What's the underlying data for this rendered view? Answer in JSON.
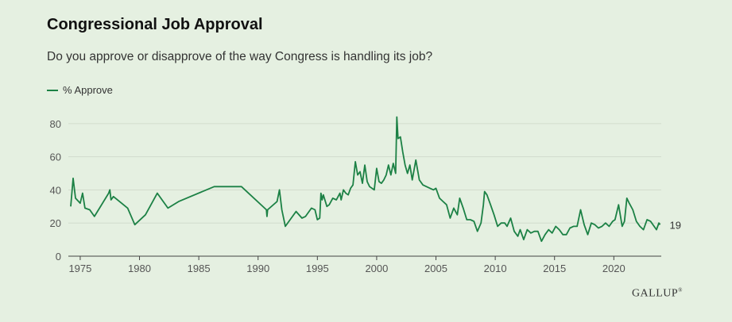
{
  "header": {
    "title": "Congressional Job Approval",
    "subtitle": "Do you approve or disapprove of the way Congress is handling its job?"
  },
  "legend": {
    "label": "% Approve"
  },
  "brand": {
    "logo": "GALLUP",
    "mark": "®"
  },
  "colors": {
    "line": "#1c8145",
    "background": "#e5f0e1",
    "grid": "#d2dccd"
  },
  "chart_data": {
    "type": "line",
    "title": "Congressional Job Approval",
    "subtitle": "Do you approve or disapprove of the way Congress is handling its job?",
    "xlabel": "",
    "ylabel": "",
    "xlim": [
      1974,
      2024
    ],
    "ylim": [
      0,
      90
    ],
    "xticks": [
      "1975",
      "1980",
      "1985",
      "1990",
      "1995",
      "2000",
      "2005",
      "2010",
      "2015",
      "2020"
    ],
    "xtick_values": [
      1975,
      1980,
      1985,
      1990,
      1995,
      2000,
      2005,
      2010,
      2015,
      2020
    ],
    "yticks": [
      "0",
      "20",
      "40",
      "60",
      "80"
    ],
    "ytick_values": [
      0,
      20,
      40,
      60,
      80
    ],
    "grid": "horizontal",
    "legend_position": "top-left",
    "end_label": "19",
    "series": [
      {
        "name": "% Approve",
        "points": [
          [
            1974.2,
            30
          ],
          [
            1974.4,
            47
          ],
          [
            1974.6,
            35
          ],
          [
            1975.0,
            32
          ],
          [
            1975.2,
            38
          ],
          [
            1975.4,
            29
          ],
          [
            1975.8,
            28
          ],
          [
            1976.2,
            24
          ],
          [
            1977.4,
            38
          ],
          [
            1977.5,
            40
          ],
          [
            1977.6,
            34
          ],
          [
            1977.8,
            36
          ],
          [
            1979.0,
            29
          ],
          [
            1979.6,
            19
          ],
          [
            1980.5,
            25
          ],
          [
            1981.5,
            38
          ],
          [
            1982.4,
            29
          ],
          [
            1983.3,
            33
          ],
          [
            1986.3,
            42
          ],
          [
            1988.6,
            42
          ],
          [
            1990.7,
            28
          ],
          [
            1990.75,
            24
          ],
          [
            1990.8,
            28
          ],
          [
            1991.6,
            33
          ],
          [
            1991.8,
            40
          ],
          [
            1992.0,
            28
          ],
          [
            1992.3,
            18
          ],
          [
            1993.2,
            27
          ],
          [
            1993.7,
            23
          ],
          [
            1994.0,
            24
          ],
          [
            1994.5,
            29
          ],
          [
            1994.8,
            28
          ],
          [
            1995.0,
            22
          ],
          [
            1995.2,
            23
          ],
          [
            1995.3,
            38
          ],
          [
            1995.4,
            34
          ],
          [
            1995.5,
            37
          ],
          [
            1995.8,
            30
          ],
          [
            1996.0,
            31
          ],
          [
            1996.3,
            35
          ],
          [
            1996.6,
            34
          ],
          [
            1996.9,
            38
          ],
          [
            1997.0,
            34
          ],
          [
            1997.2,
            40
          ],
          [
            1997.4,
            38
          ],
          [
            1997.6,
            37
          ],
          [
            1997.8,
            41
          ],
          [
            1998.0,
            43
          ],
          [
            1998.2,
            57
          ],
          [
            1998.4,
            49
          ],
          [
            1998.6,
            51
          ],
          [
            1998.8,
            44
          ],
          [
            1999.0,
            55
          ],
          [
            1999.2,
            45
          ],
          [
            1999.4,
            42
          ],
          [
            1999.6,
            41
          ],
          [
            1999.8,
            40
          ],
          [
            2000.0,
            53
          ],
          [
            2000.2,
            45
          ],
          [
            2000.4,
            44
          ],
          [
            2000.6,
            46
          ],
          [
            2000.8,
            49
          ],
          [
            2001.0,
            55
          ],
          [
            2001.2,
            49
          ],
          [
            2001.4,
            56
          ],
          [
            2001.6,
            50
          ],
          [
            2001.7,
            84
          ],
          [
            2001.8,
            71
          ],
          [
            2002.0,
            72
          ],
          [
            2002.2,
            63
          ],
          [
            2002.4,
            55
          ],
          [
            2002.6,
            50
          ],
          [
            2002.8,
            55
          ],
          [
            2003.0,
            46
          ],
          [
            2003.3,
            58
          ],
          [
            2003.6,
            46
          ],
          [
            2003.9,
            43
          ],
          [
            2004.2,
            42
          ],
          [
            2004.5,
            41
          ],
          [
            2004.8,
            40
          ],
          [
            2005.0,
            41
          ],
          [
            2005.3,
            35
          ],
          [
            2005.6,
            33
          ],
          [
            2005.9,
            31
          ],
          [
            2006.2,
            23
          ],
          [
            2006.5,
            29
          ],
          [
            2006.8,
            25
          ],
          [
            2007.0,
            35
          ],
          [
            2007.3,
            29
          ],
          [
            2007.6,
            22
          ],
          [
            2007.9,
            22
          ],
          [
            2008.2,
            21
          ],
          [
            2008.5,
            15
          ],
          [
            2008.8,
            20
          ],
          [
            2009.0,
            31
          ],
          [
            2009.1,
            39
          ],
          [
            2009.3,
            37
          ],
          [
            2009.6,
            31
          ],
          [
            2009.9,
            25
          ],
          [
            2010.2,
            18
          ],
          [
            2010.5,
            20
          ],
          [
            2010.8,
            20
          ],
          [
            2011.0,
            18
          ],
          [
            2011.3,
            23
          ],
          [
            2011.6,
            15
          ],
          [
            2011.9,
            12
          ],
          [
            2012.1,
            16
          ],
          [
            2012.4,
            10
          ],
          [
            2012.7,
            16
          ],
          [
            2013.0,
            14
          ],
          [
            2013.3,
            15
          ],
          [
            2013.6,
            15
          ],
          [
            2013.9,
            9
          ],
          [
            2014.2,
            13
          ],
          [
            2014.5,
            16
          ],
          [
            2014.8,
            14
          ],
          [
            2015.1,
            18
          ],
          [
            2015.4,
            16
          ],
          [
            2015.7,
            13
          ],
          [
            2016.0,
            13
          ],
          [
            2016.3,
            17
          ],
          [
            2016.6,
            18
          ],
          [
            2016.9,
            18
          ],
          [
            2017.2,
            28
          ],
          [
            2017.5,
            19
          ],
          [
            2017.8,
            13
          ],
          [
            2018.1,
            20
          ],
          [
            2018.4,
            19
          ],
          [
            2018.7,
            17
          ],
          [
            2019.0,
            18
          ],
          [
            2019.3,
            20
          ],
          [
            2019.6,
            18
          ],
          [
            2019.9,
            21
          ],
          [
            2020.1,
            22
          ],
          [
            2020.4,
            31
          ],
          [
            2020.7,
            18
          ],
          [
            2020.9,
            21
          ],
          [
            2021.1,
            35
          ],
          [
            2021.3,
            32
          ],
          [
            2021.6,
            28
          ],
          [
            2021.9,
            21
          ],
          [
            2022.2,
            18
          ],
          [
            2022.5,
            16
          ],
          [
            2022.8,
            22
          ],
          [
            2023.1,
            21
          ],
          [
            2023.4,
            18
          ],
          [
            2023.6,
            16
          ],
          [
            2023.8,
            20
          ],
          [
            2023.9,
            19
          ]
        ]
      }
    ]
  }
}
